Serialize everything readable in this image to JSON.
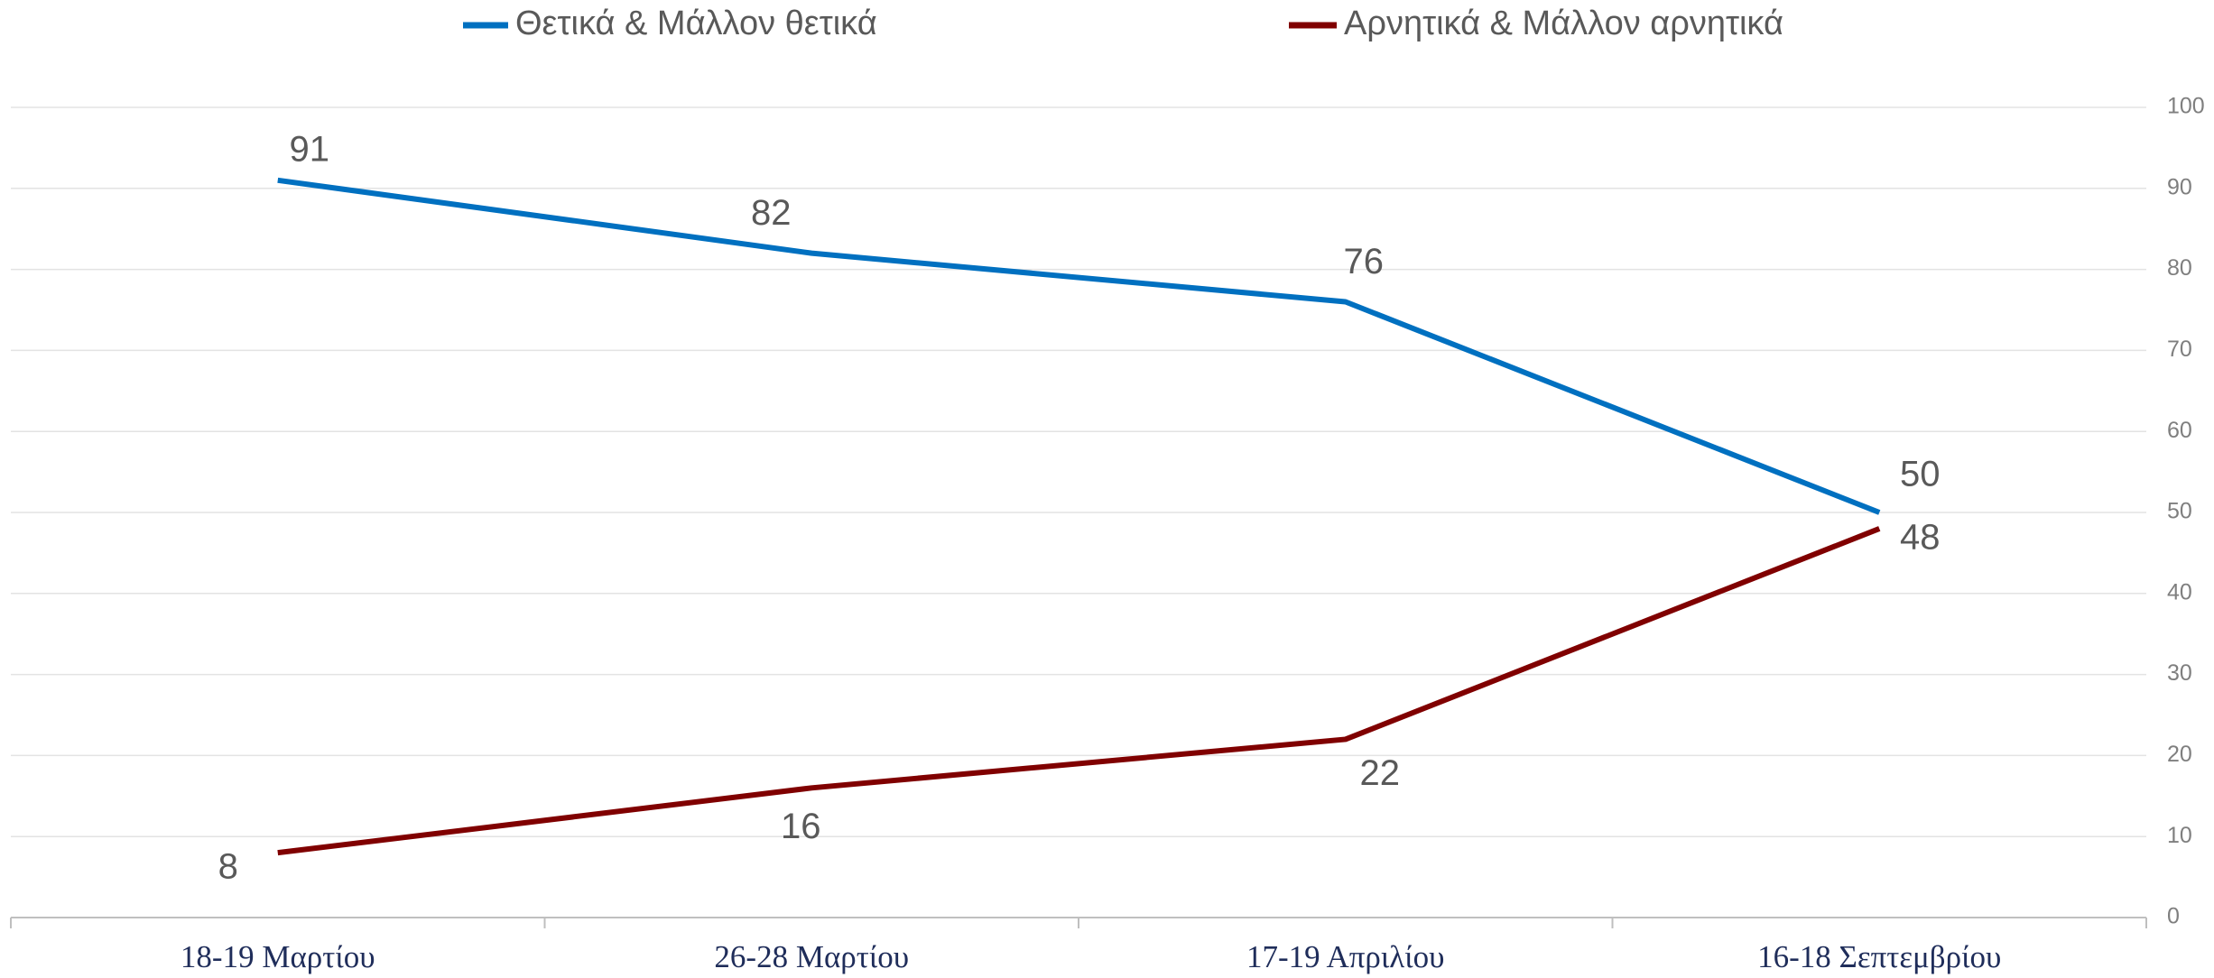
{
  "chart_data": {
    "type": "line",
    "categories": [
      "18-19 Μαρτίου",
      "26-28 Μαρτίου",
      "17-19 Απριλίου",
      "16-18 Σεπτεμβρίου"
    ],
    "series": [
      {
        "name": "Θετικά & Μάλλον θετικά",
        "color": "#0070c0",
        "values": [
          91,
          82,
          76,
          50
        ]
      },
      {
        "name": "Αρνητικά & Μάλλον αρνητικά",
        "color": "#800000",
        "values": [
          8,
          16,
          22,
          48
        ]
      }
    ],
    "ylim": [
      0,
      100
    ],
    "yticks": [
      0,
      10,
      20,
      30,
      40,
      50,
      60,
      70,
      80,
      90,
      100
    ],
    "grid": true,
    "legend": "top"
  }
}
